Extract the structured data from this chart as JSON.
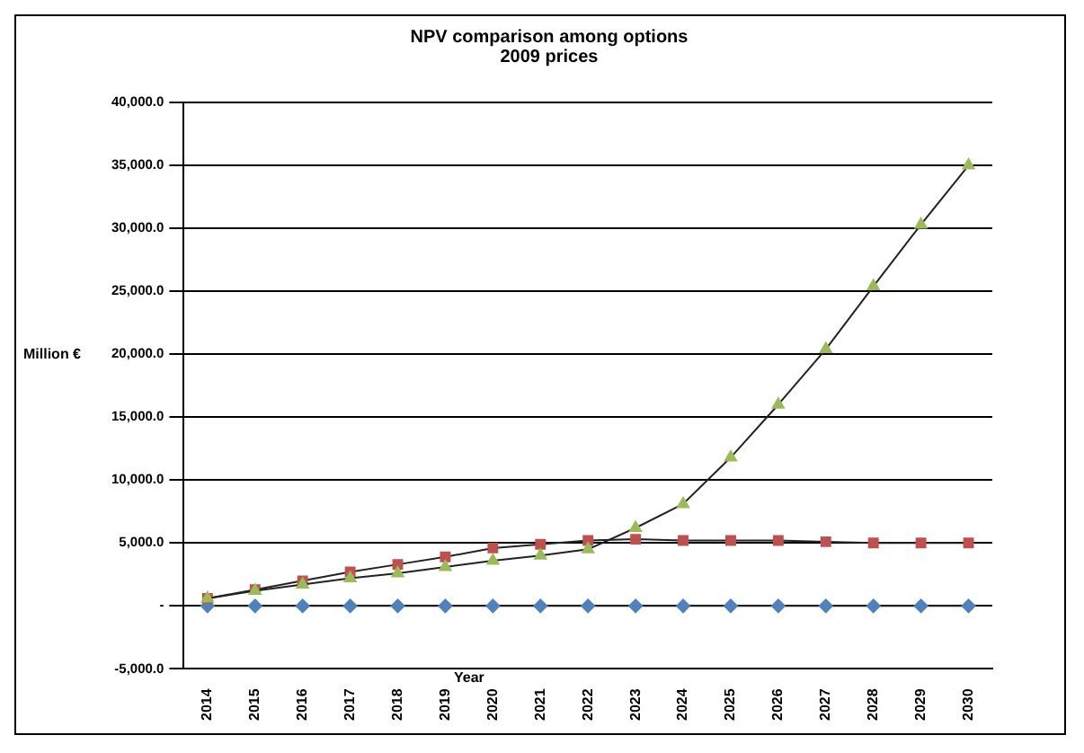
{
  "chart_data": {
    "type": "line",
    "title": [
      "NPV comparison among options",
      "2009 prices"
    ],
    "xlabel": "Year",
    "ylabel": "Million €",
    "categories": [
      "2014",
      "2015",
      "2016",
      "2017",
      "2018",
      "2019",
      "2020",
      "2021",
      "2022",
      "2023",
      "2024",
      "2025",
      "2026",
      "2027",
      "2028",
      "2029",
      "2030"
    ],
    "series": [
      {
        "color": "#4f81bd",
        "marker": "diamond",
        "values": [
          0,
          0,
          0,
          0,
          0,
          0,
          0,
          0,
          0,
          0,
          0,
          0,
          0,
          0,
          0,
          0,
          0
        ]
      },
      {
        "color": "#c0504d",
        "marker": "square",
        "values": [
          600,
          1300,
          2000,
          2700,
          3300,
          3900,
          4600,
          4900,
          5200,
          5300,
          5200,
          5200,
          5200,
          5100,
          5000,
          5000,
          5000
        ]
      },
      {
        "color": "#9bbb59",
        "marker": "triangle",
        "values": [
          600,
          1200,
          1700,
          2200,
          2600,
          3100,
          3600,
          4000,
          4500,
          6200,
          8100,
          11800,
          16000,
          20400,
          25400,
          30300,
          35000
        ]
      }
    ],
    "ylim": [
      -5000,
      40000
    ],
    "yticks": [
      {
        "value": -5000,
        "label": "-5,000.0"
      },
      {
        "value": 0,
        "label": "-"
      },
      {
        "value": 5000,
        "label": "5,000.0"
      },
      {
        "value": 10000,
        "label": "10,000.0"
      },
      {
        "value": 15000,
        "label": "15,000.0"
      },
      {
        "value": 20000,
        "label": "20,000.0"
      },
      {
        "value": 25000,
        "label": "25,000.0"
      },
      {
        "value": 30000,
        "label": "30,000.0"
      },
      {
        "value": 35000,
        "label": "35,000.0"
      },
      {
        "value": 40000,
        "label": "40,000.0"
      }
    ],
    "grid": "y",
    "legend": false
  }
}
